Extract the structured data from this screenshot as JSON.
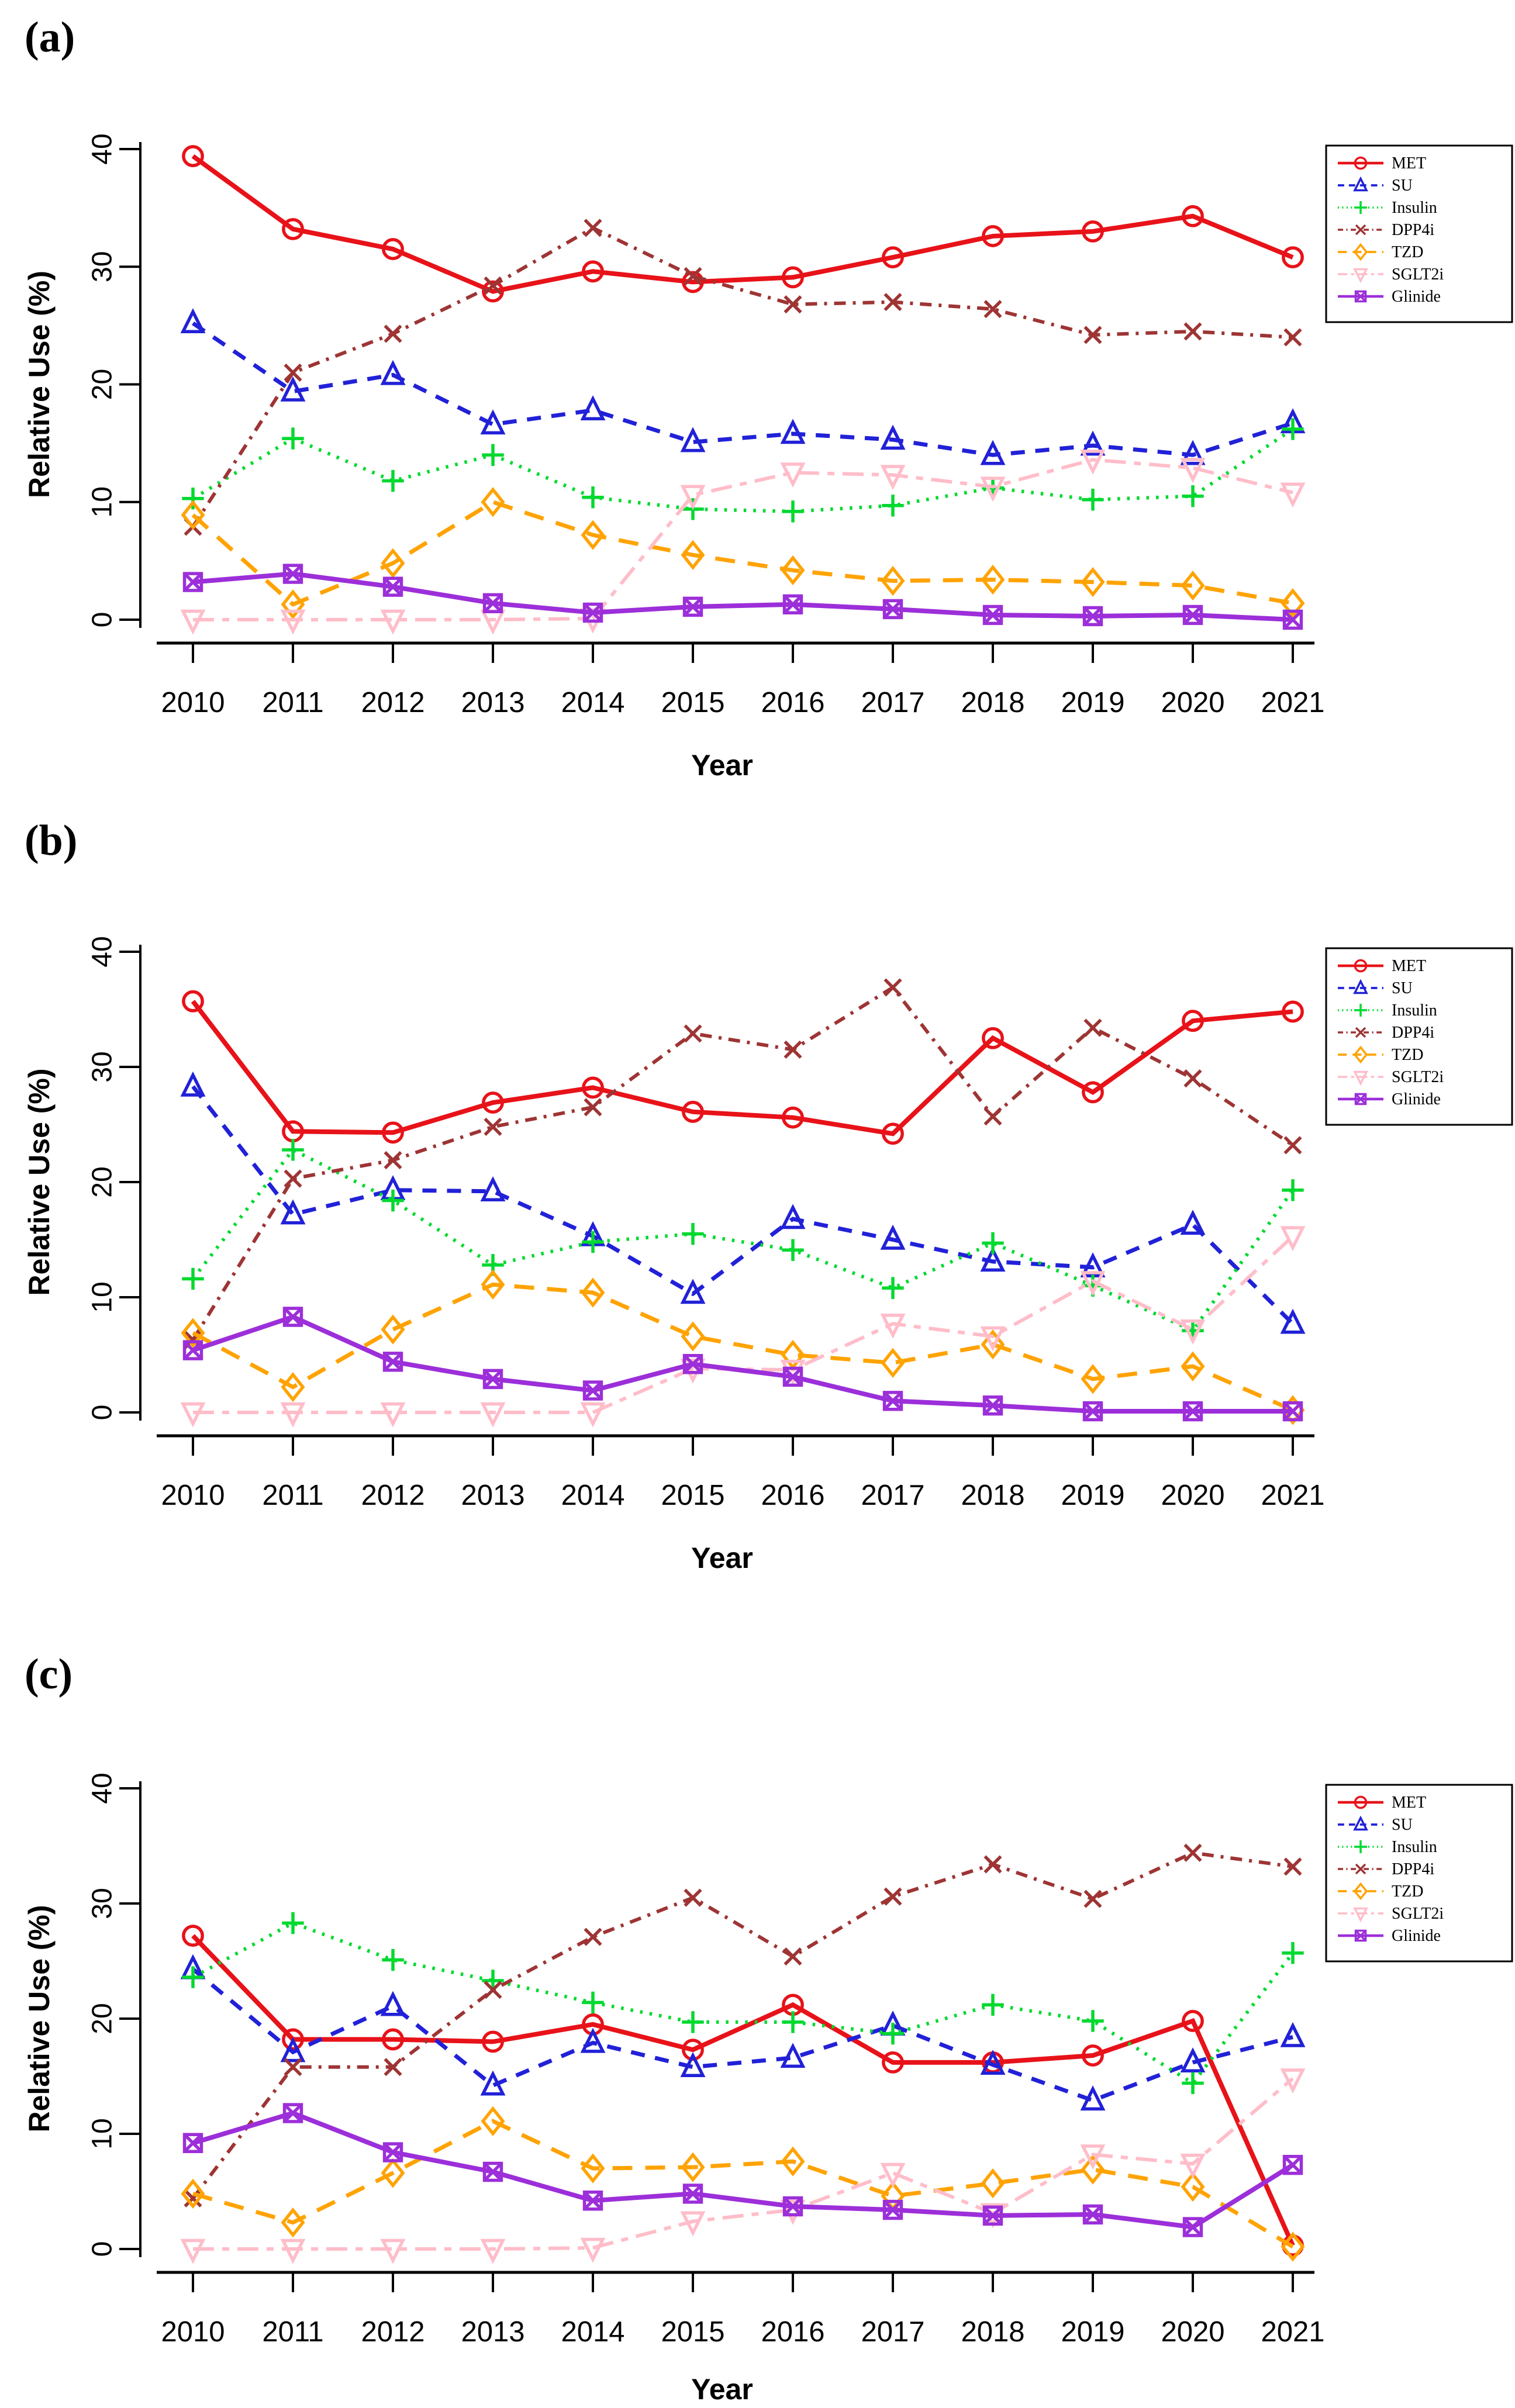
{
  "figure": {
    "panel_labels": [
      "(a)",
      "(b)",
      "(c)"
    ],
    "x_axis_label": "Year",
    "y_axis_label": "Relative Use (%)",
    "x_tick_labels": [
      "2010",
      "2011",
      "2012",
      "2013",
      "2014",
      "2015",
      "2016",
      "2017",
      "2018",
      "2019",
      "2020",
      "2021"
    ],
    "y_tick_labels": [
      "0",
      "10",
      "20",
      "30",
      "40"
    ]
  },
  "legend": {
    "entries": [
      "MET",
      "SU",
      "Insulin",
      "DPP4i",
      "TZD",
      "SGLT2i",
      "Glinide"
    ]
  },
  "series_styles": [
    {
      "name": "MET",
      "color": "#e81219",
      "line": "solid",
      "marker": "circle",
      "width": 8
    },
    {
      "name": "SU",
      "color": "#2121d8",
      "line": "dashed",
      "marker": "triangle-up",
      "width": 7
    },
    {
      "name": "Insulin",
      "color": "#00d92f",
      "line": "dotted",
      "marker": "plus",
      "width": 6
    },
    {
      "name": "DPP4i",
      "color": "#9e3434",
      "line": "dashdot",
      "marker": "x-cross",
      "width": 6
    },
    {
      "name": "TZD",
      "color": "#ffa303",
      "line": "longdash",
      "marker": "diamond",
      "width": 7
    },
    {
      "name": "SGLT2i",
      "color": "#ffbdc9",
      "line": "twodash",
      "marker": "triangle-down",
      "width": 6
    },
    {
      "name": "Glinide",
      "color": "#9c2fd9",
      "line": "solid",
      "marker": "square-x",
      "width": 8
    }
  ],
  "chart_data": [
    {
      "type": "line",
      "panel_label": "(a)",
      "title": "",
      "xlabel": "Year",
      "ylabel": "Relative Use (%)",
      "x": [
        2010,
        2011,
        2012,
        2013,
        2014,
        2015,
        2016,
        2017,
        2018,
        2019,
        2020,
        2021
      ],
      "ylim": [
        0,
        40
      ],
      "yticks": [
        0,
        10,
        20,
        30,
        40
      ],
      "grid": false,
      "legend_position": "right-top",
      "series": [
        {
          "name": "MET",
          "values": [
            39.4,
            33.2,
            31.5,
            27.9,
            29.6,
            28.7,
            29.1,
            30.8,
            32.6,
            33.0,
            34.3,
            30.8
          ]
        },
        {
          "name": "SU",
          "values": [
            25.2,
            19.4,
            20.8,
            16.6,
            17.8,
            15.1,
            15.8,
            15.3,
            14.0,
            14.8,
            14.0,
            16.7
          ]
        },
        {
          "name": "Insulin",
          "values": [
            10.3,
            15.4,
            11.8,
            14.0,
            10.4,
            9.4,
            9.2,
            9.7,
            11.2,
            10.2,
            10.5,
            16.2
          ]
        },
        {
          "name": "DPP4i",
          "values": [
            7.9,
            21.0,
            24.3,
            28.4,
            33.3,
            29.2,
            26.8,
            27.0,
            26.4,
            24.2,
            24.5,
            24.0
          ]
        },
        {
          "name": "TZD",
          "values": [
            8.9,
            1.3,
            4.8,
            10.0,
            7.2,
            5.5,
            4.2,
            3.3,
            3.4,
            3.2,
            2.9,
            1.4
          ]
        },
        {
          "name": "SGLT2i",
          "values": [
            0,
            0,
            0,
            0,
            0.1,
            10.6,
            12.5,
            12.3,
            11.3,
            13.6,
            12.9,
            10.8
          ]
        },
        {
          "name": "Glinide",
          "values": [
            3.2,
            3.9,
            2.8,
            1.4,
            0.6,
            1.1,
            1.3,
            0.9,
            0.4,
            0.3,
            0.4,
            0
          ]
        }
      ]
    },
    {
      "type": "line",
      "panel_label": "(b)",
      "title": "",
      "xlabel": "Year",
      "ylabel": "Relative Use (%)",
      "x": [
        2010,
        2011,
        2012,
        2013,
        2014,
        2015,
        2016,
        2017,
        2018,
        2019,
        2020,
        2021
      ],
      "ylim": [
        0,
        40
      ],
      "yticks": [
        0,
        10,
        20,
        30,
        40
      ],
      "grid": false,
      "legend_position": "right-top",
      "series": [
        {
          "name": "MET",
          "values": [
            35.7,
            24.4,
            24.3,
            26.9,
            28.2,
            26.1,
            25.6,
            24.2,
            32.5,
            27.8,
            34.0,
            34.8
          ]
        },
        {
          "name": "SU",
          "values": [
            28.3,
            17.2,
            19.3,
            19.2,
            15.3,
            10.3,
            16.8,
            15.0,
            13.1,
            12.6,
            16.3,
            7.7
          ]
        },
        {
          "name": "Insulin",
          "values": [
            11.6,
            22.8,
            18.4,
            12.8,
            14.8,
            15.5,
            14.1,
            10.8,
            14.7,
            11.0,
            7.1,
            19.3
          ]
        },
        {
          "name": "DPP4i",
          "values": [
            6.3,
            20.3,
            21.9,
            24.8,
            26.5,
            32.9,
            31.5,
            36.9,
            25.7,
            33.4,
            29.0,
            23.2
          ]
        },
        {
          "name": "TZD",
          "values": [
            6.9,
            2.2,
            7.2,
            11.1,
            10.4,
            6.6,
            5.0,
            4.3,
            5.9,
            2.9,
            4.0,
            0.2
          ]
        },
        {
          "name": "SGLT2i",
          "values": [
            0,
            0,
            0,
            0,
            0,
            3.8,
            3.7,
            7.7,
            6.6,
            11.4,
            7.2,
            15.3
          ]
        },
        {
          "name": "Glinide",
          "values": [
            5.4,
            8.3,
            4.4,
            2.9,
            1.9,
            4.2,
            3.1,
            1.0,
            0.6,
            0.1,
            0.1,
            0.1
          ]
        }
      ]
    },
    {
      "type": "line",
      "panel_label": "(c)",
      "title": "",
      "xlabel": "Year",
      "ylabel": "Relative Use (%)",
      "x": [
        2010,
        2011,
        2012,
        2013,
        2014,
        2015,
        2016,
        2017,
        2018,
        2019,
        2020,
        2021
      ],
      "ylim": [
        0,
        40
      ],
      "yticks": [
        0,
        10,
        20,
        30,
        40
      ],
      "grid": false,
      "legend_position": "right-top",
      "series": [
        {
          "name": "MET",
          "values": [
            27.2,
            18.2,
            18.2,
            18.0,
            19.5,
            17.3,
            21.2,
            16.2,
            16.2,
            16.8,
            19.8,
            0.3
          ]
        },
        {
          "name": "SU",
          "values": [
            24.3,
            17.1,
            21.1,
            14.2,
            17.9,
            15.8,
            16.6,
            19.4,
            16.0,
            12.9,
            16.2,
            18.4
          ]
        },
        {
          "name": "Insulin",
          "values": [
            23.6,
            28.3,
            25.1,
            23.3,
            21.4,
            19.7,
            19.7,
            18.7,
            21.2,
            19.8,
            14.4,
            25.7
          ]
        },
        {
          "name": "DPP4i",
          "values": [
            4.4,
            15.8,
            15.8,
            22.5,
            27.1,
            30.5,
            25.4,
            30.6,
            33.4,
            30.4,
            34.4,
            33.2
          ]
        },
        {
          "name": "TZD",
          "values": [
            4.8,
            2.3,
            6.6,
            11.1,
            7.0,
            7.1,
            7.6,
            4.6,
            5.7,
            6.9,
            5.4,
            0.2
          ]
        },
        {
          "name": "SGLT2i",
          "values": [
            0,
            0,
            0,
            0,
            0.1,
            2.4,
            3.4,
            6.6,
            3.1,
            8.2,
            7.4,
            14.8
          ]
        },
        {
          "name": "Glinide",
          "values": [
            9.2,
            11.8,
            8.4,
            6.7,
            4.2,
            4.8,
            3.7,
            3.4,
            2.9,
            3.0,
            1.9,
            7.3
          ]
        }
      ]
    }
  ]
}
